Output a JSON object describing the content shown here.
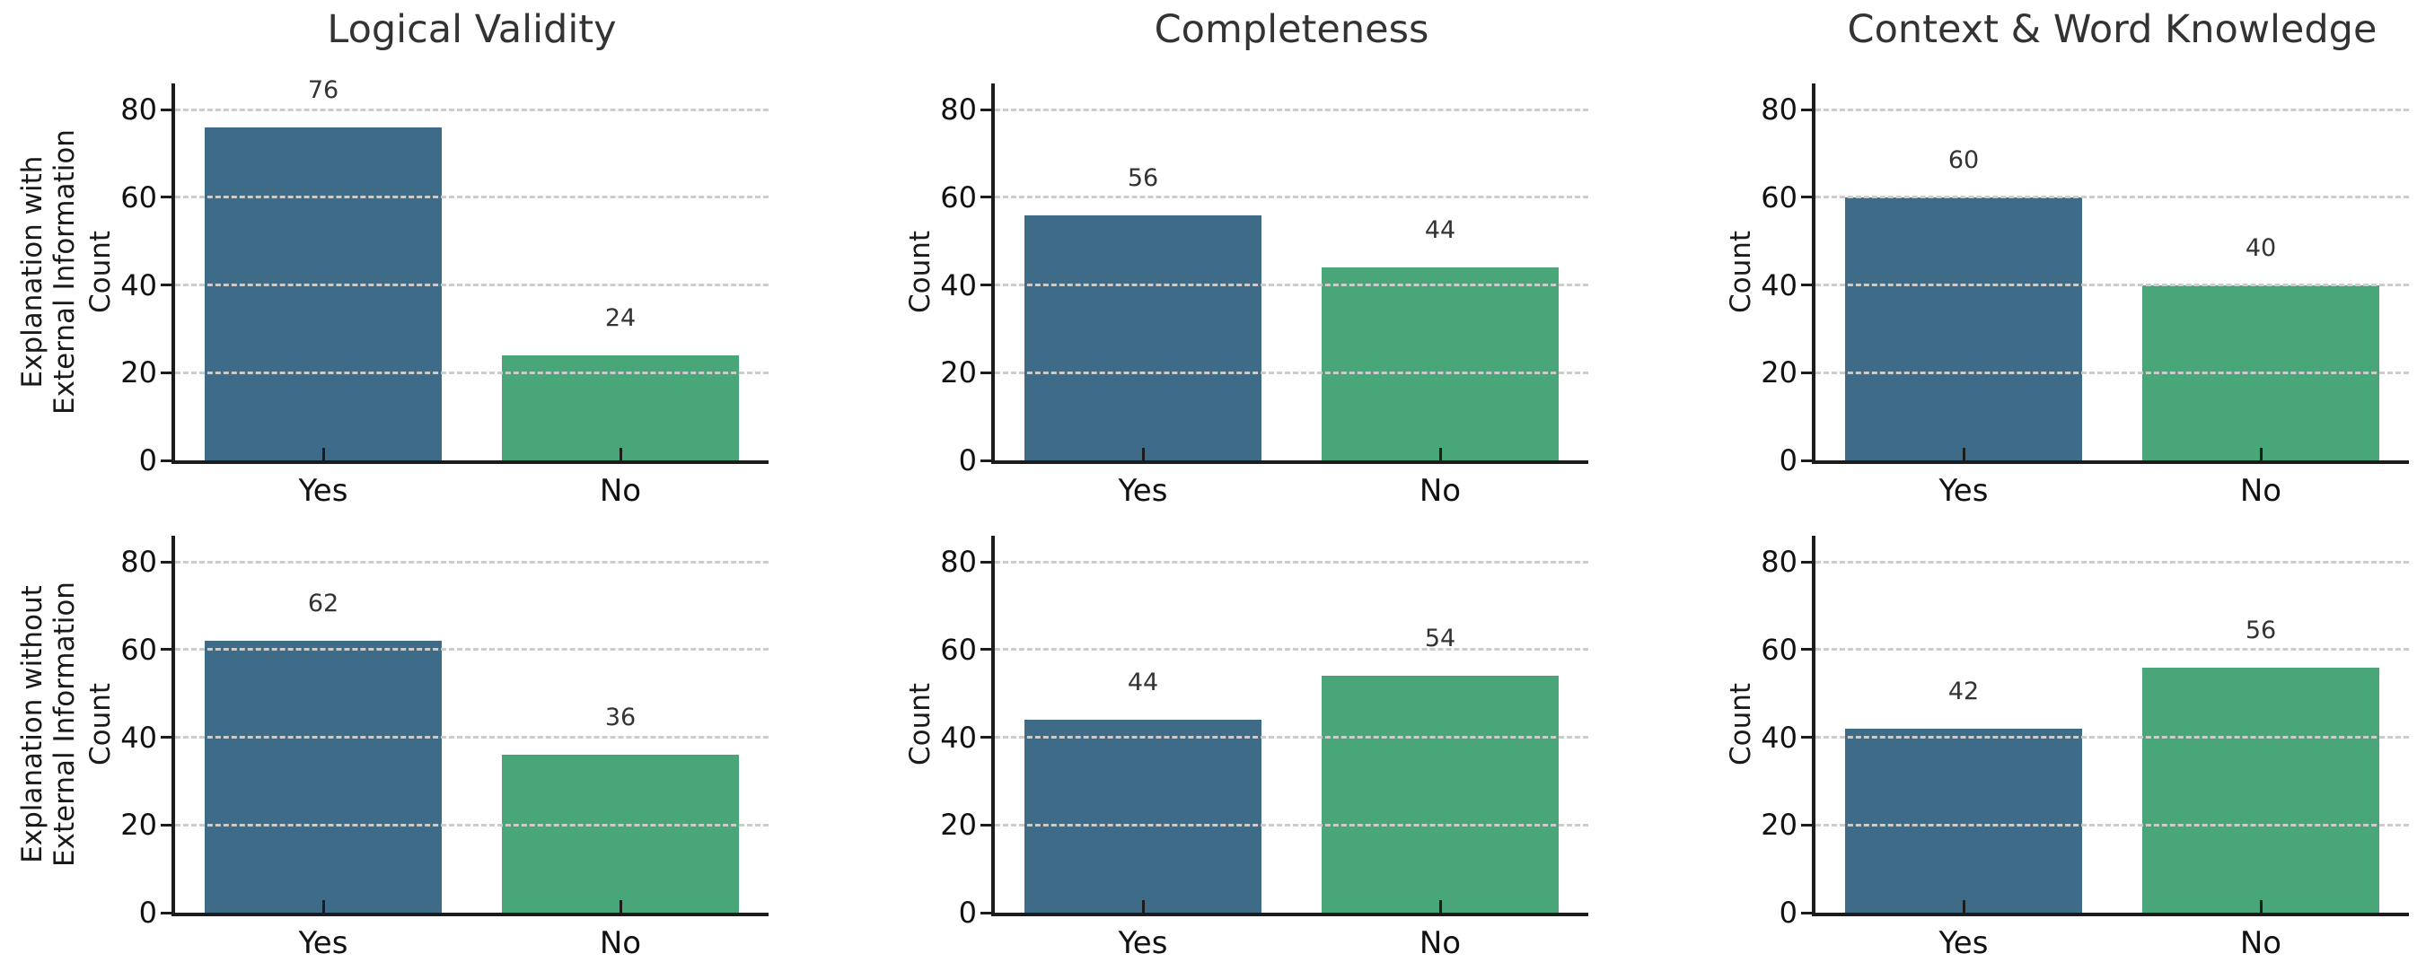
{
  "figure": {
    "background": "#ffffff",
    "column_titles": [
      "Logical Validity",
      "Completeness",
      "Context & Word Knowledge"
    ],
    "row_labels": [
      "Explanation with External Information",
      "Explanation without External Information"
    ],
    "y_axis_label": "Count",
    "categories": [
      "Yes",
      "No"
    ]
  },
  "style": {
    "bar_color_yes": "#3e6b87",
    "bar_color_no": "#48a678",
    "grid_color": "#cccccc",
    "axis_color": "#1c1c1c",
    "title_color": "#333333",
    "tick_label_color": "#111111",
    "value_label_color": "#333333"
  },
  "chart_data": [
    {
      "type": "bar",
      "title": "Logical Validity",
      "row_label_lines": [
        "Explanation with",
        "External Information"
      ],
      "ylabel": "Count",
      "categories": [
        "Yes",
        "No"
      ],
      "values": [
        76,
        24
      ],
      "yticks": [
        0,
        20,
        40,
        60,
        80
      ],
      "ylim": [
        0,
        86
      ],
      "grid": "horizontal-dashed",
      "legend": "none"
    },
    {
      "type": "bar",
      "title": "Completeness",
      "row_label_lines": null,
      "ylabel": "Count",
      "categories": [
        "Yes",
        "No"
      ],
      "values": [
        56,
        44
      ],
      "yticks": [
        0,
        20,
        40,
        60,
        80
      ],
      "ylim": [
        0,
        86
      ],
      "grid": "horizontal-dashed",
      "legend": "none"
    },
    {
      "type": "bar",
      "title": "Context & Word Knowledge",
      "row_label_lines": null,
      "ylabel": "Count",
      "categories": [
        "Yes",
        "No"
      ],
      "values": [
        60,
        40
      ],
      "yticks": [
        0,
        20,
        40,
        60,
        80
      ],
      "ylim": [
        0,
        86
      ],
      "grid": "horizontal-dashed",
      "legend": "none"
    },
    {
      "type": "bar",
      "title": "",
      "row_label_lines": [
        "Explanation without",
        "External Information"
      ],
      "ylabel": "Count",
      "categories": [
        "Yes",
        "No"
      ],
      "values": [
        62,
        36
      ],
      "yticks": [
        0,
        20,
        40,
        60,
        80
      ],
      "ylim": [
        0,
        86
      ],
      "grid": "horizontal-dashed",
      "legend": "none"
    },
    {
      "type": "bar",
      "title": "",
      "row_label_lines": null,
      "ylabel": "Count",
      "categories": [
        "Yes",
        "No"
      ],
      "values": [
        44,
        54
      ],
      "yticks": [
        0,
        20,
        40,
        60,
        80
      ],
      "ylim": [
        0,
        86
      ],
      "grid": "horizontal-dashed",
      "legend": "none"
    },
    {
      "type": "bar",
      "title": "",
      "row_label_lines": null,
      "ylabel": "Count",
      "categories": [
        "Yes",
        "No"
      ],
      "values": [
        42,
        56
      ],
      "yticks": [
        0,
        20,
        40,
        60,
        80
      ],
      "ylim": [
        0,
        86
      ],
      "grid": "horizontal-dashed",
      "legend": "none"
    }
  ]
}
